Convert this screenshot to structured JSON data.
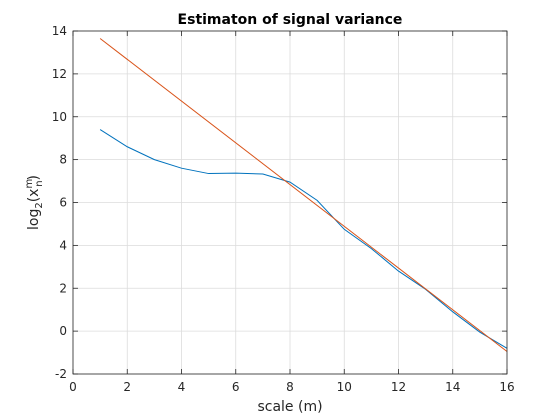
{
  "chart_data": {
    "type": "line",
    "title": "Estimaton of signal variance",
    "xlabel": "scale (m)",
    "ylabel_parts": {
      "base": "log",
      "base_sub": "2",
      "open": "(x",
      "sup": "m",
      "sub": "n",
      "close": ")"
    },
    "xlim": [
      0,
      16
    ],
    "ylim": [
      -2,
      14
    ],
    "x_ticks": [
      0,
      2,
      4,
      6,
      8,
      10,
      12,
      14,
      16
    ],
    "y_ticks": [
      -2,
      0,
      2,
      4,
      6,
      8,
      10,
      12,
      14
    ],
    "grid": true,
    "series": [
      {
        "color": "#0072BD",
        "x": [
          1,
          2,
          3,
          4,
          5,
          6,
          7,
          8,
          9,
          10,
          11,
          12,
          13,
          14,
          15,
          16
        ],
        "y": [
          9.4,
          8.6,
          8.0,
          7.6,
          7.35,
          7.37,
          7.33,
          6.95,
          6.1,
          4.75,
          3.85,
          2.8,
          1.95,
          0.9,
          -0.05,
          -0.8
        ]
      },
      {
        "color": "#D95319",
        "x": [
          1,
          16
        ],
        "y": [
          13.65,
          -0.95
        ]
      }
    ]
  }
}
